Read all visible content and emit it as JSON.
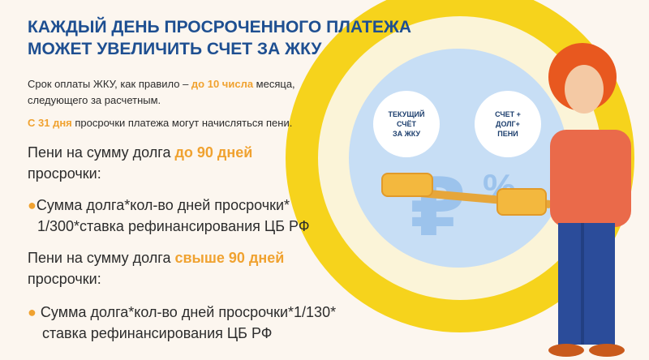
{
  "title": {
    "line1": "КАЖДЫЙ ДЕНЬ ПРОСРОЧЕННОГО ПЛАТЕЖА",
    "line2": "МОЖЕТ УВЕЛИЧИТЬ СЧЕТ ЗА ЖКУ"
  },
  "p1": {
    "before": "Срок оплаты ЖКУ, как правило – ",
    "highlight": "до 10 числа",
    "after": " месяца,",
    "line2": "следующего за расчетным."
  },
  "p2": {
    "highlight": "С 31 дня",
    "after": " просрочки платежа могут начисляться пени."
  },
  "section1": {
    "before": "Пени на сумму долга ",
    "highlight": "до 90 дней",
    "line2": "просрочки:",
    "bullet_line1": "Сумма долга*кол-во дней просрочки*",
    "bullet_line2": "1/300*ставка рефинансирования ЦБ РФ"
  },
  "section2": {
    "before": "Пени на сумму долга ",
    "highlight": "свыше 90 дней",
    "line2": "просрочки:",
    "bullet_line1": "Сумма долга*кол-во дней просрочки*1/130*",
    "bullet_line2": "ставка рефинансирования ЦБ РФ"
  },
  "illustration": {
    "bubble_left": "ТЕКУЩИЙ\nСЧЁТ\nЗА ЖКУ",
    "bubble_right": "СЧЕТ +\nДОЛГ+\nПЕНИ",
    "currency_symbol": "₽",
    "percent_symbol": "%"
  },
  "colors": {
    "title": "#1e4f91",
    "accent": "#f0a230",
    "ring": "#f6d31c",
    "background": "#fcf6ef"
  }
}
